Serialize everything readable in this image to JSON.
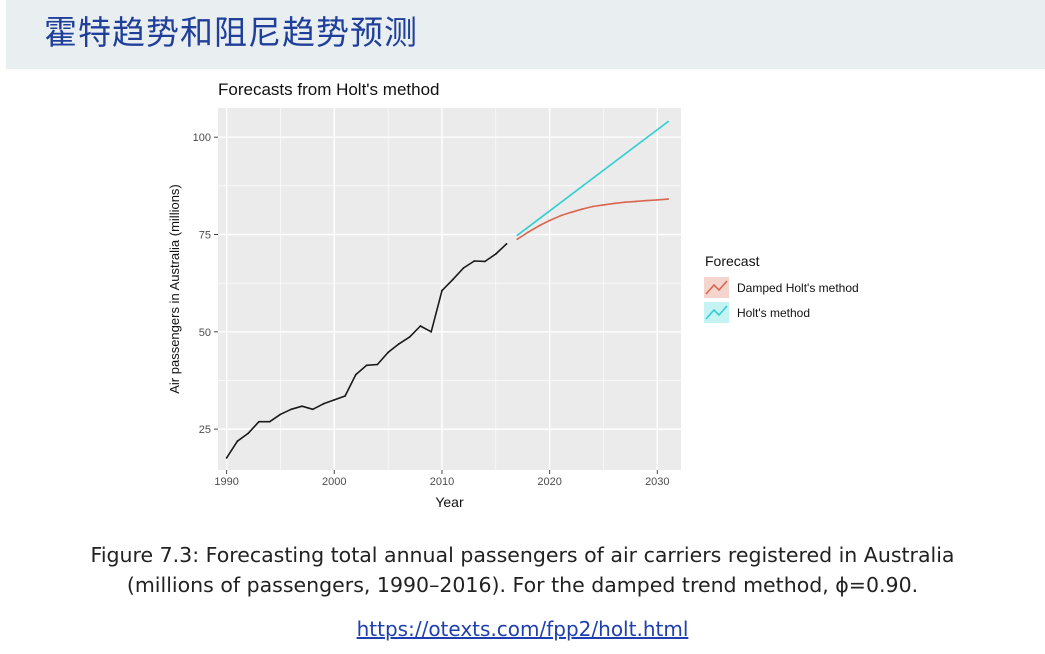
{
  "slide": {
    "title": "霍特趋势和阻尼趋势预测",
    "caption_line1": "Figure 7.3: Forecasting total annual passengers of air carriers registered in Australia",
    "caption_line2": "(millions of passengers, 1990–2016). For the damped trend method, ϕ=0.90.",
    "link": "https://otexts.com/fpp2/holt.html"
  },
  "chart_data": {
    "type": "line",
    "title": "Forecasts from Holt's method",
    "xlabel": "Year",
    "ylabel": "Air passengers in Australia (millions)",
    "xlim": [
      1989.2,
      2032.2
    ],
    "ylim": [
      14.5,
      107.5
    ],
    "x_ticks": [
      1990,
      2000,
      2010,
      2020,
      2030
    ],
    "y_ticks": [
      25,
      50,
      75,
      100
    ],
    "grid": true,
    "legend_title": "Forecast",
    "legend_position": "right",
    "colors": {
      "panel": "#ebebeb",
      "grid": "#ffffff",
      "observed": "#1a1a1a",
      "damped": "#d9674f",
      "holt": "#2fcfd2"
    },
    "series": [
      {
        "key": "observed",
        "x": [
          1990,
          1991,
          1992,
          1993,
          1994,
          1995,
          1996,
          1997,
          1998,
          1999,
          2000,
          2001,
          2002,
          2003,
          2004,
          2005,
          2006,
          2007,
          2008,
          2009,
          2010,
          2011,
          2012,
          2013,
          2014,
          2015,
          2016
        ],
        "values": [
          17.6,
          21.9,
          23.9,
          26.9,
          26.9,
          28.8,
          30.1,
          30.9,
          30.1,
          31.5,
          32.5,
          33.5,
          39.0,
          41.4,
          41.6,
          44.7,
          46.9,
          48.7,
          51.5,
          50.0,
          60.6,
          63.4,
          66.4,
          68.2,
          68.1,
          70.0,
          72.6
        ]
      },
      {
        "key": "damped",
        "name": "Damped Holt's method",
        "x": [
          2017,
          2018,
          2019,
          2020,
          2021,
          2022,
          2023,
          2024,
          2025,
          2026,
          2027,
          2028,
          2029,
          2030,
          2031
        ],
        "values": [
          73.8,
          75.6,
          77.2,
          78.6,
          79.8,
          80.7,
          81.5,
          82.2,
          82.6,
          83.0,
          83.3,
          83.5,
          83.7,
          83.9,
          84.1
        ]
      },
      {
        "key": "holt",
        "name": "Holt's method",
        "x": [
          2017,
          2031
        ],
        "values": [
          74.8,
          104.0
        ]
      }
    ]
  }
}
